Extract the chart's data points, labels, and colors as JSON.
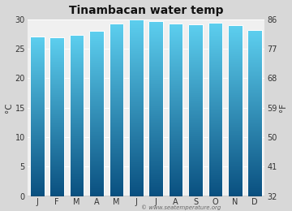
{
  "title": "Tinambacan water temp",
  "months": [
    "J",
    "F",
    "M",
    "A",
    "M",
    "J",
    "J",
    "A",
    "S",
    "O",
    "N",
    "D"
  ],
  "values_c": [
    27.0,
    26.9,
    27.3,
    28.0,
    29.2,
    30.0,
    29.6,
    29.2,
    29.1,
    29.4,
    29.0,
    28.1
  ],
  "ylim_c": [
    0,
    30
  ],
  "yticks_c": [
    0,
    5,
    10,
    15,
    20,
    25,
    30
  ],
  "yticks_f": [
    32,
    41,
    50,
    59,
    68,
    77,
    86
  ],
  "ylabel_left": "°C",
  "ylabel_right": "°F",
  "bar_color_top": "#5dcfef",
  "bar_color_bottom": "#0a5080",
  "bar_edge_color": "#ffffff",
  "fig_bg_color": "#d8d8d8",
  "plot_bg_color": "#f0f0f0",
  "watermark": "© www.seatemperature.org",
  "title_fontsize": 10,
  "tick_fontsize": 7,
  "label_fontsize": 7.5
}
